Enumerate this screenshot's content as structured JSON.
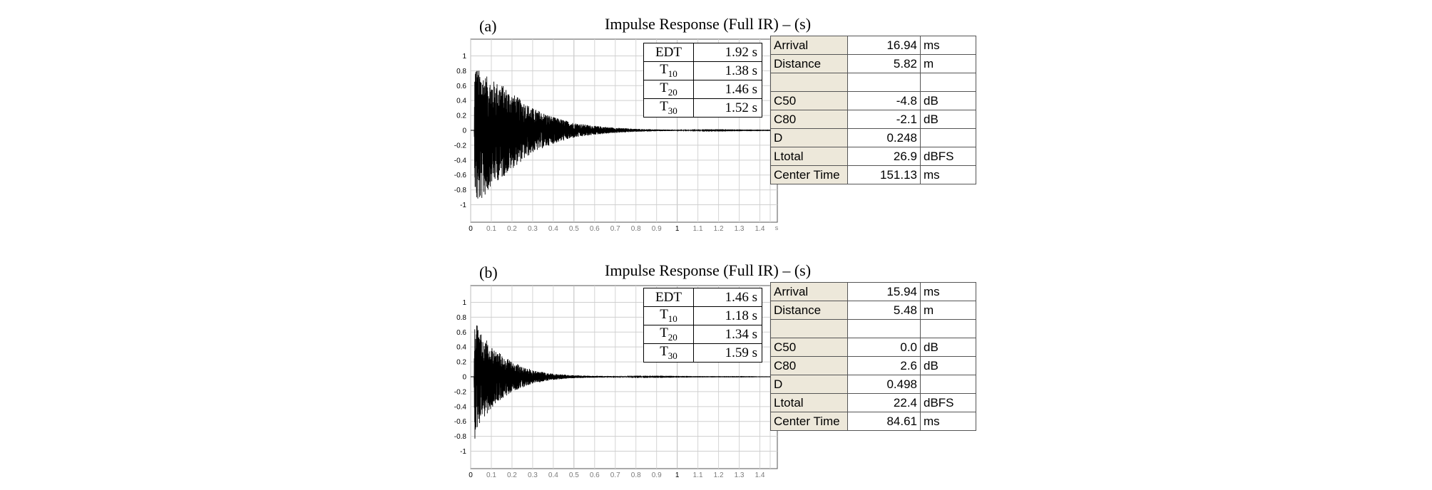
{
  "chart_data": [
    {
      "type": "line",
      "label": "(a)",
      "title": "Impulse Response (Full IR) – (s)",
      "x_unit": "s",
      "xlim": [
        0,
        1.45
      ],
      "ylim": [
        -1.1,
        1.1
      ],
      "x_ticks": [
        "0",
        "0.1",
        "0.2",
        "0.3",
        "0.4",
        "0.5",
        "0.6",
        "0.7",
        "0.8",
        "0.9",
        "1",
        "1.1",
        "1.2",
        "1.3",
        "1.4"
      ],
      "y_ticks": [
        "1",
        "0.8",
        "0.6",
        "0.4",
        "0.2",
        "0",
        "-0.2",
        "-0.4",
        "-0.6",
        "-0.8",
        "-1"
      ],
      "grid": true,
      "series": [
        {
          "envelope_time_s": [
            0.0,
            0.017,
            0.02,
            0.03,
            0.05,
            0.08,
            0.1,
            0.15,
            0.2,
            0.3,
            0.4,
            0.5,
            0.6,
            0.7,
            0.8,
            0.9,
            1.0,
            1.1,
            1.2,
            1.3,
            1.45
          ],
          "envelope_upper": [
            0.0,
            0.0,
            0.93,
            0.85,
            0.78,
            0.72,
            0.68,
            0.62,
            0.5,
            0.3,
            0.18,
            0.1,
            0.06,
            0.035,
            0.02,
            0.012,
            0.008,
            0.005,
            0.004,
            0.003,
            0.002
          ],
          "envelope_lower": [
            0.0,
            0.0,
            -0.78,
            -1.0,
            -0.95,
            -0.85,
            -0.72,
            -0.65,
            -0.52,
            -0.3,
            -0.18,
            -0.1,
            -0.06,
            -0.035,
            -0.02,
            -0.012,
            -0.008,
            -0.005,
            -0.004,
            -0.003,
            -0.002
          ]
        }
      ],
      "reverb_table": [
        {
          "name": "EDT",
          "value": "1.92 s"
        },
        {
          "name": "T",
          "sub": "10",
          "value": "1.38 s"
        },
        {
          "name": "T",
          "sub": "20",
          "value": "1.46 s"
        },
        {
          "name": "T",
          "sub": "30",
          "value": "1.52 s"
        }
      ],
      "acoustic_table": [
        {
          "name": "Arrival",
          "value": "16.94",
          "unit": "ms"
        },
        {
          "name": "Distance",
          "value": "5.82",
          "unit": "m"
        },
        {
          "name": "",
          "value": "",
          "unit": ""
        },
        {
          "name": "C50",
          "value": "-4.8",
          "unit": "dB"
        },
        {
          "name": "C80",
          "value": "-2.1",
          "unit": "dB"
        },
        {
          "name": "D",
          "value": "0.248",
          "unit": ""
        },
        {
          "name": "Ltotal",
          "value": "26.9",
          "unit": "dBFS"
        },
        {
          "name": "Center Time",
          "value": "151.13",
          "unit": "ms"
        }
      ]
    },
    {
      "type": "line",
      "label": "(b)",
      "title": "Impulse Response (Full IR) – (s)",
      "x_unit": "",
      "xlim": [
        0,
        1.45
      ],
      "ylim": [
        -1.1,
        1.1
      ],
      "x_ticks": [
        "0",
        "0.1",
        "0.2",
        "0.3",
        "0.4",
        "0.5",
        "0.6",
        "0.7",
        "0.8",
        "0.9",
        "1",
        "1.1",
        "1.2",
        "1.3",
        "1.4"
      ],
      "y_ticks": [
        "1",
        "0.8",
        "0.6",
        "0.4",
        "0.2",
        "0",
        "-0.2",
        "-0.4",
        "-0.6",
        "-0.8",
        "-1"
      ],
      "grid": true,
      "series": [
        {
          "envelope_time_s": [
            0.0,
            0.016,
            0.02,
            0.03,
            0.05,
            0.08,
            0.1,
            0.15,
            0.2,
            0.3,
            0.4,
            0.5,
            0.6,
            0.7,
            0.8,
            0.9,
            1.0,
            1.1,
            1.2,
            1.3,
            1.45
          ],
          "envelope_upper": [
            0.0,
            0.0,
            0.95,
            0.7,
            0.58,
            0.48,
            0.42,
            0.3,
            0.2,
            0.09,
            0.04,
            0.02,
            0.012,
            0.008,
            0.005,
            0.004,
            0.003,
            0.002,
            0.002,
            0.002,
            0.001
          ],
          "envelope_lower": [
            0.0,
            0.0,
            -1.0,
            -0.72,
            -0.6,
            -0.5,
            -0.42,
            -0.3,
            -0.2,
            -0.09,
            -0.04,
            -0.02,
            -0.012,
            -0.008,
            -0.005,
            -0.004,
            -0.003,
            -0.002,
            -0.002,
            -0.002,
            -0.001
          ]
        }
      ],
      "reverb_table": [
        {
          "name": "EDT",
          "value": "1.46 s"
        },
        {
          "name": "T",
          "sub": "10",
          "value": "1.18 s"
        },
        {
          "name": "T",
          "sub": "20",
          "value": "1.34 s"
        },
        {
          "name": "T",
          "sub": "30",
          "value": "1.59 s"
        }
      ],
      "acoustic_table": [
        {
          "name": "Arrival",
          "value": "15.94",
          "unit": "ms"
        },
        {
          "name": "Distance",
          "value": "5.48",
          "unit": "m"
        },
        {
          "name": "",
          "value": "",
          "unit": ""
        },
        {
          "name": "C50",
          "value": "0.0",
          "unit": "dB"
        },
        {
          "name": "C80",
          "value": "2.6",
          "unit": "dB"
        },
        {
          "name": "D",
          "value": "0.498",
          "unit": ""
        },
        {
          "name": "Ltotal",
          "value": "22.4",
          "unit": "dBFS"
        },
        {
          "name": "Center Time",
          "value": "84.61",
          "unit": "ms"
        }
      ]
    }
  ]
}
